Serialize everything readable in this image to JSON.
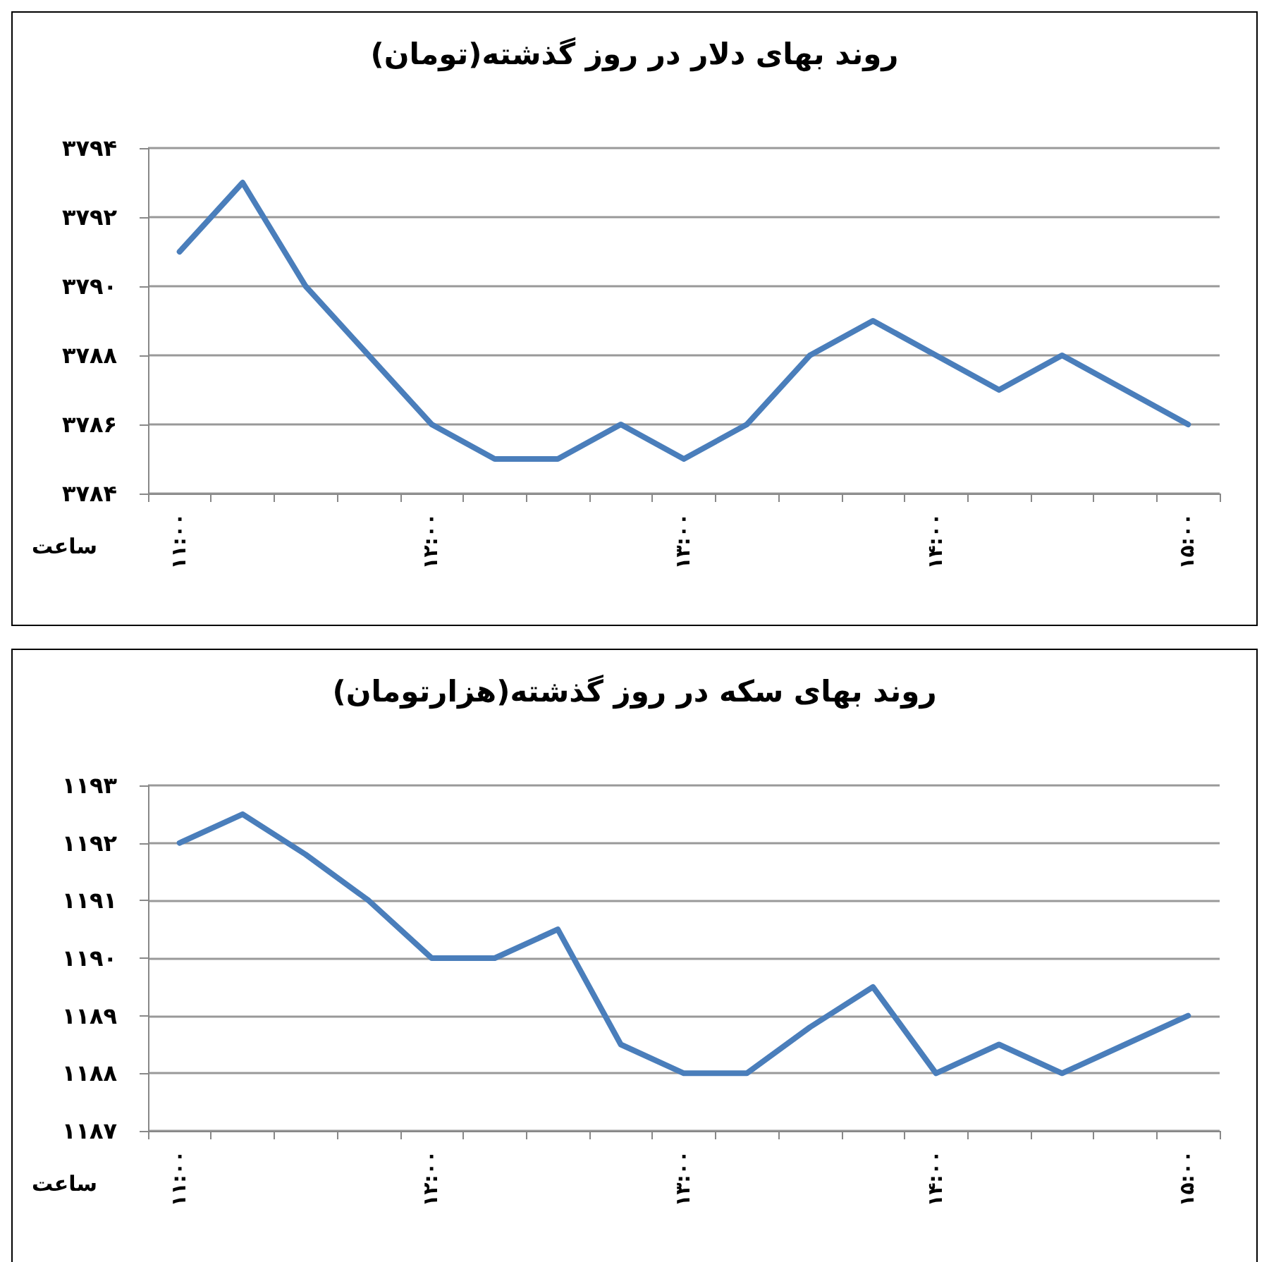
{
  "chart_data": [
    {
      "type": "line",
      "title": "روند بهای دلار در روز گذشته(تومان)",
      "xlabel": "ساعت",
      "categories": [
        "۱۱:۰۰",
        null,
        null,
        null,
        "۱۲:۰۰",
        null,
        null,
        null,
        "۱۳:۰۰",
        null,
        null,
        null,
        "۱۴:۰۰",
        null,
        null,
        null,
        "۱۵:۰۰"
      ],
      "series": [
        {
          "color": "#4a7ebb",
          "values": [
            3791,
            3793,
            3790,
            3788,
            3786,
            3785,
            3785,
            3786,
            3785,
            3786,
            3788,
            3789,
            3788,
            3787,
            3788,
            3787,
            3786
          ]
        }
      ],
      "ylim": [
        3784,
        3794
      ],
      "yticks": [
        {
          "value": 3784,
          "label": "۳۷۸۴"
        },
        {
          "value": 3786,
          "label": "۳۷۸۶"
        },
        {
          "value": 3788,
          "label": "۳۷۸۸"
        },
        {
          "value": 3790,
          "label": "۳۷۹۰"
        },
        {
          "value": 3792,
          "label": "۳۷۹۲"
        },
        {
          "value": 3794,
          "label": "۳۷۹۴"
        }
      ],
      "grid": "y",
      "marker": "none",
      "line_style": "solid"
    },
    {
      "type": "line",
      "title": "روند بهای سکه در روز گذشته(هزارتومان)",
      "xlabel": "ساعت",
      "categories": [
        "۱۱:۰۰",
        null,
        null,
        null,
        "۱۲:۰۰",
        null,
        null,
        null,
        "۱۳:۰۰",
        null,
        null,
        null,
        "۱۴:۰۰",
        null,
        null,
        null,
        "۱۵:۰۰"
      ],
      "series": [
        {
          "color": "#4a7ebb",
          "values": [
            1192,
            1192.5,
            1191.8,
            1191,
            1190,
            1190,
            1190.5,
            1188.5,
            1188,
            1188,
            1188.8,
            1189.5,
            1188,
            1188.5,
            1188,
            1188.5,
            1189
          ]
        }
      ],
      "ylim": [
        1187,
        1193
      ],
      "yticks": [
        {
          "value": 1187,
          "label": "۱۱۸۷"
        },
        {
          "value": 1188,
          "label": "۱۱۸۸"
        },
        {
          "value": 1189,
          "label": "۱۱۸۹"
        },
        {
          "value": 1190,
          "label": "۱۱۹۰"
        },
        {
          "value": 1191,
          "label": "۱۱۹۱"
        },
        {
          "value": 1192,
          "label": "۱۱۹۲"
        },
        {
          "value": 1193,
          "label": "۱۱۹۳"
        }
      ],
      "grid": "y",
      "marker": "none",
      "line_style": "solid"
    }
  ]
}
